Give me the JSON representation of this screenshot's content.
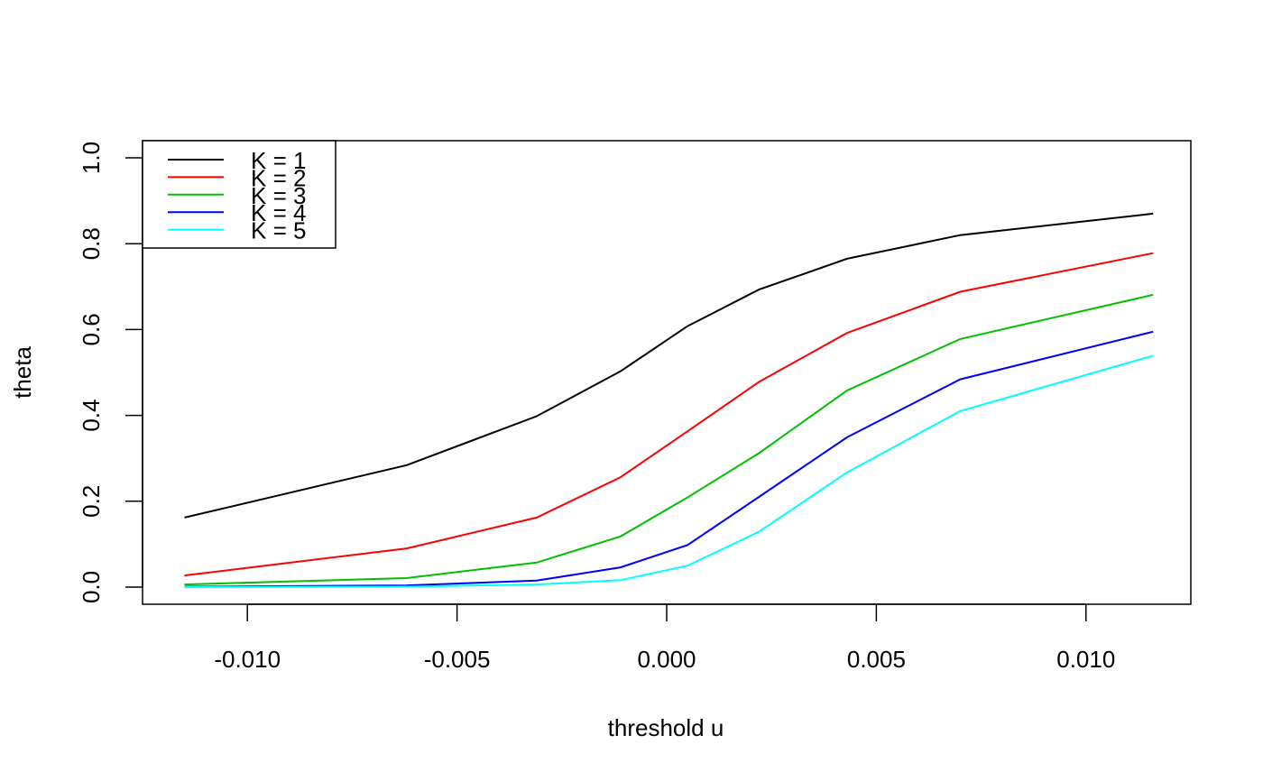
{
  "chart_data": {
    "type": "line",
    "xlabel": "threshold u",
    "ylabel": "theta",
    "xlim": [
      -0.0125,
      0.0125
    ],
    "ylim": [
      -0.04,
      1.04
    ],
    "x_ticks": [
      -0.01,
      -0.005,
      0.0,
      0.005,
      0.01
    ],
    "x_tick_labels": [
      "-0.010",
      "-0.005",
      "0.000",
      "0.005",
      "0.010"
    ],
    "y_ticks": [
      0.0,
      0.2,
      0.4,
      0.6,
      0.8,
      1.0
    ],
    "y_tick_labels": [
      "0.0",
      "0.2",
      "0.4",
      "0.6",
      "0.8",
      "1.0"
    ],
    "grid": false,
    "legend_position": "top-left",
    "x": [
      -0.0115,
      -0.0062,
      -0.0031,
      -0.0011,
      0.0005,
      0.0022,
      0.0043,
      0.007,
      0.0116
    ],
    "series": [
      {
        "name": "K = 1",
        "color": "#000000",
        "values": [
          0.162,
          0.284,
          0.398,
          0.503,
          0.608,
          0.693,
          0.765,
          0.82,
          0.87
        ]
      },
      {
        "name": "K = 2",
        "color": "#ff0000",
        "values": [
          0.027,
          0.09,
          0.162,
          0.256,
          0.363,
          0.478,
          0.592,
          0.688,
          0.778
        ]
      },
      {
        "name": "K = 3",
        "color": "#00c000",
        "values": [
          0.006,
          0.021,
          0.057,
          0.118,
          0.209,
          0.312,
          0.458,
          0.578,
          0.681
        ]
      },
      {
        "name": "K = 4",
        "color": "#0000ff",
        "values": [
          0.001,
          0.004,
          0.015,
          0.046,
          0.098,
          0.21,
          0.349,
          0.484,
          0.595
        ]
      },
      {
        "name": "K = 5",
        "color": "#00ffff",
        "values": [
          0.0,
          0.001,
          0.006,
          0.016,
          0.05,
          0.129,
          0.267,
          0.41,
          0.539
        ]
      }
    ]
  }
}
